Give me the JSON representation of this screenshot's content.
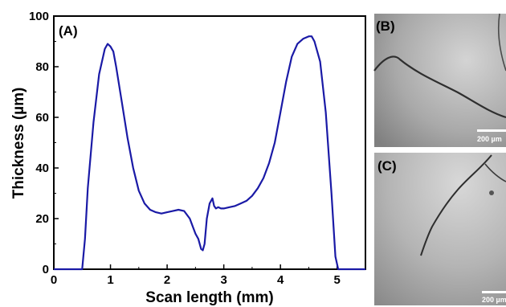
{
  "chart_data": {
    "type": "line",
    "panel_label": "(A)",
    "xlabel": "Scan length (mm)",
    "ylabel": "Thickness (µm)",
    "xlim": [
      0,
      5.5
    ],
    "ylim": [
      0,
      100
    ],
    "x_ticks": [
      "0",
      "1",
      "2",
      "3",
      "4",
      "5"
    ],
    "y_ticks": [
      "0",
      "20",
      "40",
      "60",
      "80",
      "100"
    ],
    "grid": false,
    "line_color": "#1a1aa6",
    "series": [
      {
        "x": [
          0,
          0.3,
          0.45,
          0.5,
          0.55,
          0.6,
          0.7,
          0.8,
          0.9,
          0.95,
          1.0,
          1.05,
          1.1,
          1.2,
          1.3,
          1.4,
          1.5,
          1.6,
          1.7,
          1.8,
          1.9,
          2.0,
          2.1,
          2.2,
          2.3,
          2.4,
          2.45,
          2.5,
          2.55,
          2.6,
          2.63,
          2.66,
          2.7,
          2.75,
          2.8,
          2.83,
          2.86,
          2.9,
          2.95,
          3.0,
          3.1,
          3.2,
          3.3,
          3.4,
          3.5,
          3.6,
          3.7,
          3.8,
          3.9,
          4.0,
          4.1,
          4.2,
          4.3,
          4.4,
          4.5,
          4.55,
          4.6,
          4.7,
          4.8,
          4.9,
          4.97,
          5.02,
          5.05,
          5.1,
          5.5
        ],
        "y": [
          0,
          0,
          0,
          0,
          12,
          32,
          58,
          77,
          87,
          89,
          88,
          86,
          80,
          66,
          52,
          40,
          31,
          26,
          23.5,
          22.5,
          22,
          22.5,
          23,
          23.5,
          23,
          20,
          17,
          14,
          12,
          8,
          7.5,
          10,
          20,
          26,
          28,
          25,
          24,
          24.5,
          24,
          24,
          24.5,
          25,
          26,
          27,
          29,
          32,
          36,
          42,
          50,
          62,
          74,
          84,
          89,
          91,
          92,
          92,
          90,
          82,
          62,
          30,
          5,
          0,
          0,
          0,
          0
        ]
      }
    ]
  },
  "images": {
    "b_label": "(B)",
    "b_scale": "200 µm",
    "c_label": "(C)",
    "c_scale": "200 µm"
  }
}
